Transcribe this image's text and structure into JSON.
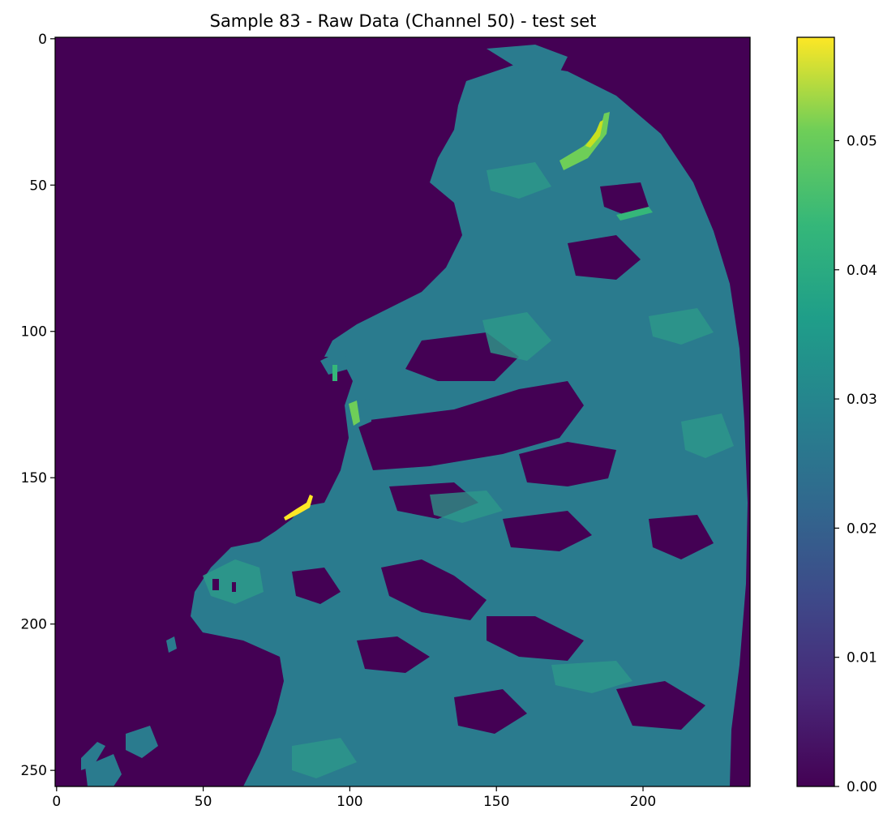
{
  "chart_data": {
    "type": "heatmap",
    "title": "Sample 83 - Raw Data (Channel 50) - test set",
    "xlabel": "",
    "ylabel": "",
    "image_size": {
      "cols": 237,
      "rows": 256
    },
    "colormap": "viridis",
    "xlim": [
      -0.5,
      236.5
    ],
    "ylim": [
      255.5,
      -0.5
    ],
    "x_ticks": [
      0,
      50,
      100,
      150,
      200
    ],
    "x_tick_labels": [
      "0",
      "50",
      "100",
      "150",
      "200"
    ],
    "y_ticks": [
      0,
      50,
      100,
      150,
      200,
      250
    ],
    "y_tick_labels": [
      "0",
      "50",
      "100",
      "150",
      "200",
      "250"
    ],
    "colorbar": {
      "range": [
        0.0,
        0.058
      ],
      "ticks": [
        0.0,
        0.01,
        0.02,
        0.03,
        0.04,
        0.05
      ],
      "tick_labels": [
        "0.00",
        "0.01",
        "0.02",
        "0.03",
        "0.04",
        "0.05"
      ]
    },
    "description_values": {
      "background_value": 0.0,
      "typical_region_value": 0.022,
      "bright_region_value": 0.028,
      "peak_value": 0.058
    }
  },
  "colors": {
    "viridis_low": "#440154",
    "viridis_mid": "#21918c",
    "viridis_high": "#fde725"
  }
}
